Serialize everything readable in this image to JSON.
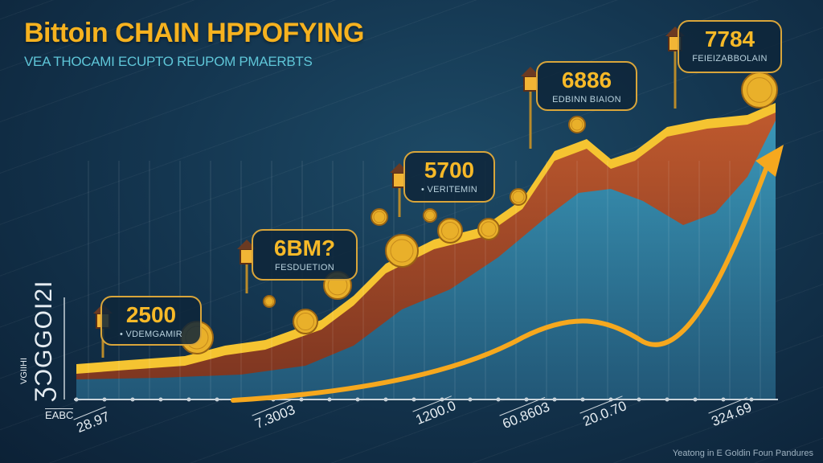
{
  "header": {
    "title": "Bittoin CHAIN HPPOFYING",
    "subtitle": "VEA THOCAMI ECUPTO REUPOM PMAERBTS"
  },
  "colors": {
    "title": "#f6b21f",
    "subtitle": "#5fc6d8",
    "terrain_top": "#f5c431",
    "terrain_body": "#b4532c",
    "blue_area": "#2a8fb8",
    "trend_arrow": "#f6a81e"
  },
  "chart_data": {
    "type": "area",
    "title": "Bittoin CHAIN HPPOFYING",
    "subtitle": "VEA THOCAMI ECUPTO REUPOM PMAERBTS",
    "ylabel": "ƷƆGGOI2I",
    "ylabel_small": "VGIIHI",
    "axis_corner_label": "EABC",
    "x_tick_labels": [
      "28.97",
      "7.3003",
      "1200.0",
      "60.8603",
      "20.0.70",
      "324.69"
    ],
    "annotations": [
      {
        "value": "2500",
        "caption": "• VDEMGAMIR"
      },
      {
        "value": "6BM?",
        "caption": "FESDUETION"
      },
      {
        "value": "5700",
        "caption": "• VERITEMIN"
      },
      {
        "value": "6886",
        "caption": "EDBINN BIAION"
      },
      {
        "value": "7784",
        "caption": "FEIEIZABBOLAIN"
      }
    ],
    "trend": "rising arrow",
    "grid": false
  },
  "footer": {
    "credit": "Yeatong in E Goldin Foun Pandures"
  }
}
